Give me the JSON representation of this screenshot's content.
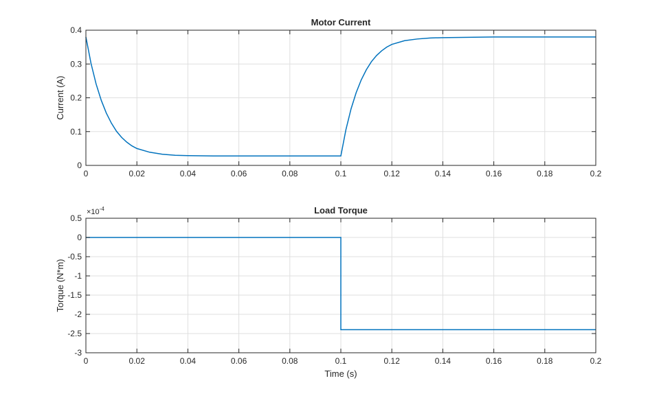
{
  "chart_data": [
    {
      "type": "line",
      "title": "Motor Current",
      "xlabel": "",
      "ylabel": "Current (A)",
      "xlim": [
        0,
        0.2
      ],
      "ylim": [
        0,
        0.4
      ],
      "xticks": [
        "0",
        "0.02",
        "0.04",
        "0.06",
        "0.08",
        "0.1",
        "0.12",
        "0.14",
        "0.16",
        "0.18",
        "0.2"
      ],
      "yticks": [
        "0",
        "0.1",
        "0.2",
        "0.3",
        "0.4"
      ],
      "grid": true,
      "series": [
        {
          "color": "#0072bd",
          "x": [
            0,
            0.002,
            0.004,
            0.006,
            0.008,
            0.01,
            0.012,
            0.014,
            0.016,
            0.018,
            0.02,
            0.025,
            0.03,
            0.035,
            0.04,
            0.05,
            0.06,
            0.07,
            0.08,
            0.09,
            0.1,
            0.1,
            0.102,
            0.104,
            0.106,
            0.108,
            0.11,
            0.112,
            0.114,
            0.116,
            0.118,
            0.12,
            0.125,
            0.13,
            0.135,
            0.14,
            0.15,
            0.16,
            0.17,
            0.18,
            0.19,
            0.2
          ],
          "y": [
            0.38,
            0.302,
            0.241,
            0.193,
            0.155,
            0.125,
            0.101,
            0.083,
            0.069,
            0.058,
            0.05,
            0.039,
            0.033,
            0.03,
            0.029,
            0.028,
            0.028,
            0.028,
            0.028,
            0.028,
            0.028,
            0.028,
            0.106,
            0.167,
            0.215,
            0.253,
            0.283,
            0.307,
            0.325,
            0.339,
            0.35,
            0.358,
            0.369,
            0.374,
            0.377,
            0.378,
            0.379,
            0.38,
            0.38,
            0.38,
            0.38,
            0.38
          ]
        }
      ]
    },
    {
      "type": "line",
      "title": "Load Torque",
      "xlabel": "Time (s)",
      "ylabel": "Torque (N*m)",
      "y_exponent_base": "×10",
      "y_exponent_power": "-4",
      "xlim": [
        0,
        0.2
      ],
      "ylim": [
        -3,
        0.5
      ],
      "xticks": [
        "0",
        "0.02",
        "0.04",
        "0.06",
        "0.08",
        "0.1",
        "0.12",
        "0.14",
        "0.16",
        "0.18",
        "0.2"
      ],
      "yticks": [
        "-3",
        "-2.5",
        "-2",
        "-1.5",
        "-1",
        "-0.5",
        "0",
        "0.5"
      ],
      "grid": true,
      "series": [
        {
          "color": "#0072bd",
          "x": [
            0,
            0.1,
            0.1,
            0.2
          ],
          "y": [
            0,
            0,
            -2.4,
            -2.4
          ]
        }
      ]
    }
  ]
}
